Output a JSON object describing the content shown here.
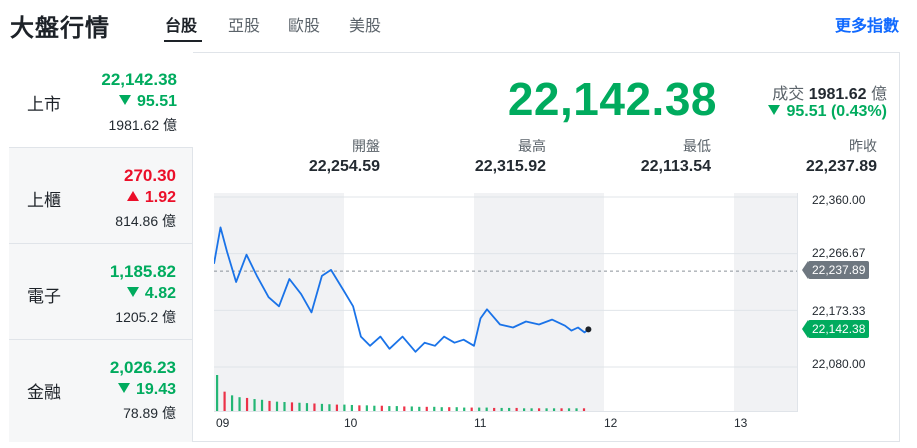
{
  "header": {
    "title": "大盤行情",
    "tabs": [
      {
        "label": "台股",
        "active": true
      },
      {
        "label": "亞股",
        "active": false
      },
      {
        "label": "歐股",
        "active": false
      },
      {
        "label": "美股",
        "active": false
      }
    ],
    "more_link": "更多指數"
  },
  "sidebar": {
    "items": [
      {
        "name": "上市",
        "price": "22,142.38",
        "change": "95.51",
        "direction": "down",
        "volume": "1981.62 億",
        "active": true
      },
      {
        "name": "上櫃",
        "price": "270.30",
        "change": "1.92",
        "direction": "up",
        "volume": "814.86 億",
        "active": false
      },
      {
        "name": "電子",
        "price": "1,185.82",
        "change": "4.82",
        "direction": "down",
        "volume": "1205.2 億",
        "active": false
      },
      {
        "name": "金融",
        "price": "2,026.23",
        "change": "19.43",
        "direction": "down",
        "volume": "78.89 億",
        "active": false
      }
    ]
  },
  "quote": {
    "price": "22,142.38",
    "volume_label": "成交",
    "volume_value": "1981.62",
    "volume_unit": "億",
    "change": "95.51 (0.43%)",
    "stats": [
      {
        "label": "開盤",
        "value": "22,254.59"
      },
      {
        "label": "最高",
        "value": "22,315.92"
      },
      {
        "label": "最低",
        "value": "22,113.54"
      },
      {
        "label": "昨收",
        "value": "22,237.89"
      }
    ]
  },
  "colors": {
    "up": "#eb0f29",
    "down": "#00ab5e",
    "line": "#1a73e8",
    "link": "#0f69ff"
  },
  "chart_data": {
    "type": "line",
    "y_ticks": [
      "22,360.00",
      "22,266.67",
      "22,173.33",
      "22,080.00"
    ],
    "ylim": [
      22080,
      22360
    ],
    "x_ticks": [
      "09",
      "10",
      "11",
      "12",
      "13"
    ],
    "previous_close_label": "22,237.89",
    "previous_close": 22237.89,
    "last_label": "22,142.38",
    "x": [
      9.0,
      9.05,
      9.1,
      9.17,
      9.25,
      9.33,
      9.42,
      9.5,
      9.58,
      9.67,
      9.75,
      9.83,
      9.9,
      10.0,
      10.07,
      10.13,
      10.2,
      10.28,
      10.35,
      10.45,
      10.55,
      10.62,
      10.7,
      10.77,
      10.85,
      10.92,
      11.0,
      11.05,
      11.1,
      11.2,
      11.3,
      11.4,
      11.5,
      11.6,
      11.7,
      11.75,
      11.8,
      11.85,
      11.88
    ],
    "values": [
      22250,
      22310,
      22270,
      22220,
      22265,
      22230,
      22195,
      22180,
      22225,
      22200,
      22170,
      22230,
      22240,
      22205,
      22180,
      22130,
      22115,
      22130,
      22110,
      22130,
      22105,
      22120,
      22115,
      22130,
      22120,
      22125,
      22115,
      22160,
      22175,
      22150,
      22145,
      22155,
      22150,
      22158,
      22148,
      22140,
      22145,
      22137,
      22142
    ],
    "volume_bars": [
      1.0,
      0.55,
      0.45,
      0.4,
      0.38,
      0.35,
      0.33,
      0.3,
      0.28,
      0.27,
      0.26,
      0.25,
      0.24,
      0.23,
      0.22,
      0.21,
      0.2,
      0.2,
      0.19,
      0.18,
      0.18,
      0.17,
      0.17,
      0.16,
      0.16,
      0.15,
      0.15,
      0.14,
      0.14,
      0.14,
      0.13,
      0.13,
      0.13,
      0.12,
      0.12,
      0.12,
      0.12,
      0.11,
      0.11,
      0.11,
      0.11,
      0.1,
      0.1,
      0.1,
      0.1,
      0.1,
      0.1,
      0.1,
      0.1,
      0.1
    ],
    "grid": true
  }
}
